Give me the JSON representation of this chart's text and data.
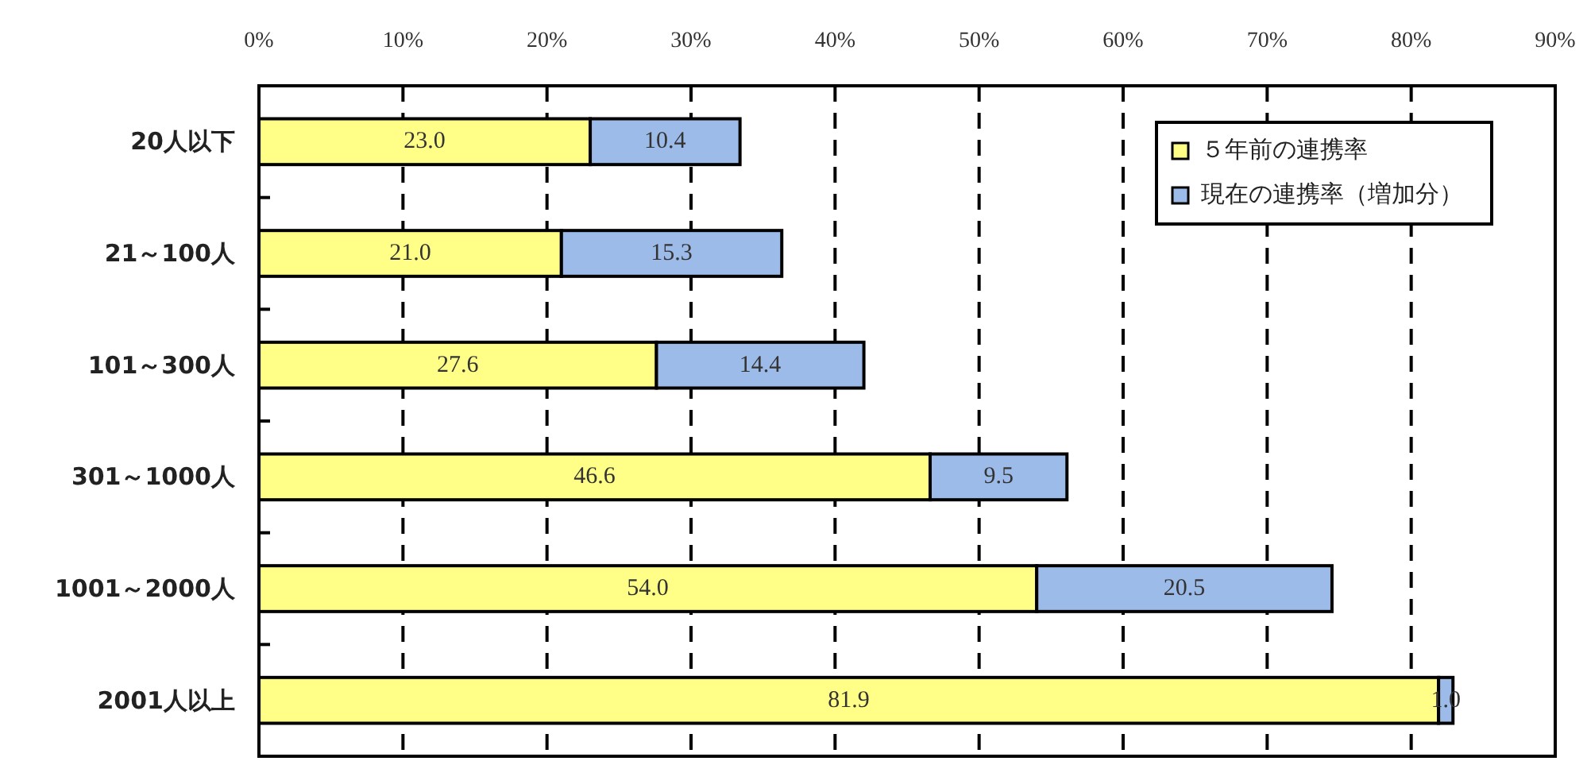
{
  "chart_data": {
    "type": "bar",
    "orientation": "horizontal",
    "stacked": true,
    "categories": [
      "20人以下",
      "21～100人",
      "101～300人",
      "301～1000人",
      "1001～2000人",
      "2001人以上"
    ],
    "series": [
      {
        "name": "５年前の連携率",
        "color": "#ffff88",
        "values": [
          23.0,
          21.0,
          27.6,
          46.6,
          54.0,
          81.9
        ],
        "value_labels": [
          "23.0",
          "21.0",
          "27.6",
          "46.6",
          "54.0",
          "81.9"
        ]
      },
      {
        "name": "現在の連携率（増加分）",
        "color": "#9dbbe9",
        "values": [
          10.4,
          15.3,
          14.4,
          9.5,
          20.5,
          1.0
        ],
        "value_labels": [
          "10.4",
          "15.3",
          "14.4",
          "9.5",
          "20.5",
          "1.0"
        ]
      }
    ],
    "xlim": [
      0,
      90
    ],
    "xticks": [
      {
        "value": 0,
        "label": "0%"
      },
      {
        "value": 10,
        "label": "10%"
      },
      {
        "value": 20,
        "label": "20%"
      },
      {
        "value": 30,
        "label": "30%"
      },
      {
        "value": 40,
        "label": "40%"
      },
      {
        "value": 50,
        "label": "50%"
      },
      {
        "value": 60,
        "label": "60%"
      },
      {
        "value": 70,
        "label": "70%"
      },
      {
        "value": 80,
        "label": "80%"
      },
      {
        "value": 90,
        "label": "90%"
      }
    ],
    "grid": "x",
    "legend": "top right"
  }
}
